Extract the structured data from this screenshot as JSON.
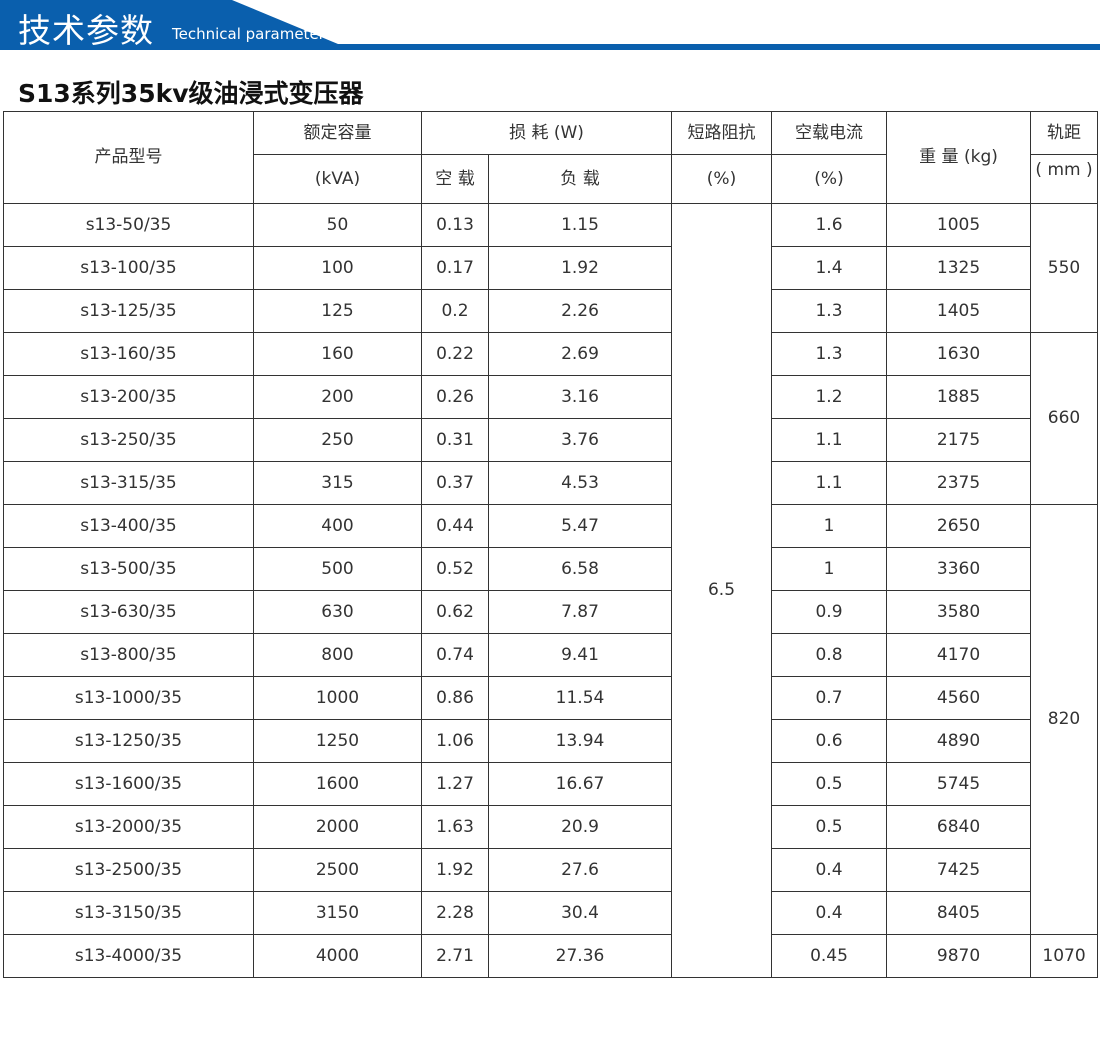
{
  "banner": {
    "title": "技术参数",
    "subtitle": "Technical parameter",
    "color": "#0a5fad"
  },
  "page_title": "S13系列35kv级油浸式变压器",
  "headers": {
    "model": "产品型号",
    "capacity": "额定容量",
    "capacity_unit": "(kVA)",
    "loss": "损 耗 (W)",
    "no_load": "空 载",
    "load": "负 载",
    "impedance": "短路阻抗",
    "impedance_unit": "(%)",
    "current": "空载电流",
    "current_unit": "(%)",
    "weight": "重 量 (kg)",
    "gauge": "轨距",
    "gauge_unit": "( mm )"
  },
  "impedance_value": "6.5",
  "gauge_groups": [
    {
      "value": "550",
      "rows": 3
    },
    {
      "value": "660",
      "rows": 4
    },
    {
      "value": "820",
      "rows": 10
    },
    {
      "value": "1070",
      "rows": 1
    }
  ],
  "rows": [
    [
      "s13-50/35",
      "50",
      "0.13",
      "1.15",
      "1.6",
      "1005"
    ],
    [
      "s13-100/35",
      "100",
      "0.17",
      "1.92",
      "1.4",
      "1325"
    ],
    [
      "s13-125/35",
      "125",
      "0.2",
      "2.26",
      "1.3",
      "1405"
    ],
    [
      "s13-160/35",
      "160",
      "0.22",
      "2.69",
      "1.3",
      "1630"
    ],
    [
      "s13-200/35",
      "200",
      "0.26",
      "3.16",
      "1.2",
      "1885"
    ],
    [
      "s13-250/35",
      "250",
      "0.31",
      "3.76",
      "1.1",
      "2175"
    ],
    [
      "s13-315/35",
      "315",
      "0.37",
      "4.53",
      "1.1",
      "2375"
    ],
    [
      "s13-400/35",
      "400",
      "0.44",
      "5.47",
      "1",
      "2650"
    ],
    [
      "s13-500/35",
      "500",
      "0.52",
      "6.58",
      "1",
      "3360"
    ],
    [
      "s13-630/35",
      "630",
      "0.62",
      "7.87",
      "0.9",
      "3580"
    ],
    [
      "s13-800/35",
      "800",
      "0.74",
      "9.41",
      "0.8",
      "4170"
    ],
    [
      "s13-1000/35",
      "1000",
      "0.86",
      "11.54",
      "0.7",
      "4560"
    ],
    [
      "s13-1250/35",
      "1250",
      "1.06",
      "13.94",
      "0.6",
      "4890"
    ],
    [
      "s13-1600/35",
      "1600",
      "1.27",
      "16.67",
      "0.5",
      "5745"
    ],
    [
      "s13-2000/35",
      "2000",
      "1.63",
      "20.9",
      "0.5",
      "6840"
    ],
    [
      "s13-2500/35",
      "2500",
      "1.92",
      "27.6",
      "0.4",
      "7425"
    ],
    [
      "s13-3150/35",
      "3150",
      "2.28",
      "30.4",
      "0.4",
      "8405"
    ],
    [
      "s13-4000/35",
      "4000",
      "2.71",
      "27.36",
      "0.45",
      "9870"
    ]
  ]
}
